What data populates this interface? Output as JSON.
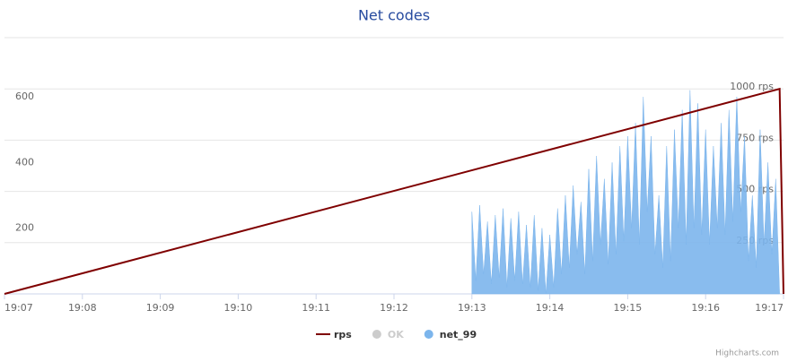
{
  "chart_data": {
    "type": "line",
    "title": "Net codes",
    "xlim": [
      0,
      10.0
    ],
    "xticks": [
      {
        "value": 0,
        "label": "19:07"
      },
      {
        "value": 1,
        "label": "19:08"
      },
      {
        "value": 2,
        "label": "19:09"
      },
      {
        "value": 3,
        "label": "19:10"
      },
      {
        "value": 4,
        "label": "19:11"
      },
      {
        "value": 5,
        "label": "19:12"
      },
      {
        "value": 6,
        "label": "19:13"
      },
      {
        "value": 7,
        "label": "19:14"
      },
      {
        "value": 8,
        "label": "19:15"
      },
      {
        "value": 9,
        "label": "19:16"
      },
      {
        "value": 10,
        "label": "19:17"
      }
    ],
    "ylim": [
      0,
      780
    ],
    "yticks": [
      200,
      400,
      600
    ],
    "y2lim": [
      0,
      1250
    ],
    "y2ticks": [
      {
        "value": 250,
        "label": "250 rps"
      },
      {
        "value": 500,
        "label": "500 rps"
      },
      {
        "value": 750,
        "label": "750 rps"
      },
      {
        "value": 1000,
        "label": "1000 rps"
      }
    ],
    "grid": true,
    "series": [
      {
        "name": "rps",
        "color": "#7f0000",
        "axis": "y2",
        "kind": "line",
        "x": [
          0,
          9.95,
          10.0
        ],
        "values": [
          0,
          1000,
          0
        ]
      },
      {
        "name": "OK",
        "color": "#cccccc",
        "visible": false,
        "kind": "area",
        "x": [],
        "values": []
      },
      {
        "name": "net_99",
        "color": "#7cb5ec",
        "kind": "area",
        "x": [
          6.0,
          6.05,
          6.1,
          6.15,
          6.2,
          6.25,
          6.3,
          6.35,
          6.4,
          6.45,
          6.5,
          6.55,
          6.6,
          6.65,
          6.7,
          6.75,
          6.8,
          6.85,
          6.9,
          6.95,
          7.0,
          7.05,
          7.1,
          7.15,
          7.2,
          7.25,
          7.3,
          7.35,
          7.4,
          7.45,
          7.5,
          7.55,
          7.6,
          7.65,
          7.7,
          7.75,
          7.8,
          7.85,
          7.9,
          7.95,
          8.0,
          8.05,
          8.1,
          8.15,
          8.2,
          8.25,
          8.3,
          8.35,
          8.4,
          8.45,
          8.5,
          8.55,
          8.6,
          8.65,
          8.7,
          8.75,
          8.8,
          8.85,
          8.9,
          8.95,
          9.0,
          9.05,
          9.1,
          9.15,
          9.2,
          9.25,
          9.3,
          9.35,
          9.4,
          9.45,
          9.5,
          9.55,
          9.6,
          9.65,
          9.7,
          9.75,
          9.8,
          9.85,
          9.9,
          9.95
        ],
        "values": [
          250,
          40,
          270,
          60,
          220,
          30,
          240,
          50,
          260,
          20,
          230,
          40,
          250,
          30,
          210,
          20,
          240,
          10,
          200,
          0,
          180,
          20,
          260,
          60,
          300,
          80,
          330,
          120,
          280,
          60,
          380,
          100,
          420,
          150,
          350,
          90,
          400,
          120,
          450,
          160,
          480,
          200,
          520,
          150,
          600,
          250,
          480,
          120,
          300,
          80,
          450,
          100,
          500,
          200,
          560,
          150,
          620,
          200,
          580,
          180,
          500,
          150,
          450,
          200,
          520,
          180,
          560,
          220,
          600,
          250,
          480,
          100,
          300,
          80,
          500,
          150,
          400,
          120,
          350,
          0
        ]
      }
    ],
    "credits": "Highcharts.com"
  }
}
